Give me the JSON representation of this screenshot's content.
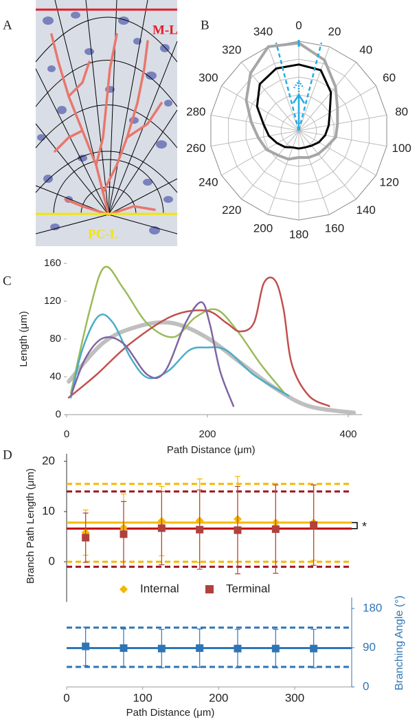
{
  "panel_a": {
    "label": "A",
    "top_layer": "M-L",
    "bottom_layer": "PC-L"
  },
  "chart_data": [
    {
      "type": "polar",
      "label": "B",
      "theta_ticks": [
        0,
        20,
        40,
        60,
        80,
        100,
        120,
        140,
        160,
        180,
        200,
        220,
        240,
        260,
        280,
        300,
        320,
        340
      ],
      "rlim": [
        0,
        5
      ],
      "rgrid": [
        1,
        2,
        3,
        4,
        5
      ],
      "series": [
        {
          "color": "#a6a6a6",
          "values": [
            4.9,
            4.2,
            3.2,
            2.5,
            2.2,
            2.1,
            1.8,
            1.7,
            1.6,
            1.5,
            1.7,
            1.8,
            2.1,
            2.3,
            2.7,
            3.4,
            4.2,
            5.0
          ]
        },
        {
          "color": "#000000",
          "values": [
            3.7,
            3.6,
            2.8,
            2.0,
            1.7,
            1.5,
            1.3,
            1.1,
            1.0,
            1.0,
            1.0,
            1.2,
            1.4,
            1.7,
            2.0,
            2.7,
            3.4,
            3.7
          ]
        }
      ]
    },
    {
      "type": "line",
      "label": "C",
      "xlabel": "Path Distance (μm)",
      "ylabel": "Length (μm)",
      "xlim": [
        0,
        420
      ],
      "ylim": [
        0,
        160
      ],
      "xticks": [
        0,
        200,
        400
      ],
      "yticks": [
        0,
        40,
        80,
        120,
        160
      ],
      "series": [
        {
          "color": "#9bbb59",
          "width": 2.5,
          "x": [
            6,
            33,
            54,
            81,
            115,
            152,
            183,
            213,
            242,
            276,
            308
          ],
          "values": [
            23,
            111,
            156,
            133,
            96,
            82,
            103,
            111,
            89,
            53,
            24
          ]
        },
        {
          "color": "#c0504d",
          "width": 2.5,
          "x": [
            3,
            42,
            90,
            149,
            198,
            227,
            246,
            266,
            280,
            296,
            308,
            320,
            344,
            373
          ],
          "values": [
            18,
            42,
            75,
            104,
            110,
            97,
            88,
            97,
            139,
            142,
            112,
            53,
            20,
            9
          ]
        },
        {
          "color": "#8064a2",
          "width": 2.5,
          "x": [
            6,
            27,
            52,
            81,
            115,
            140,
            169,
            191,
            203,
            218,
            237
          ],
          "values": [
            20,
            60,
            81,
            75,
            42,
            46,
            97,
            119,
            97,
            46,
            9
          ]
        },
        {
          "color": "#4bacc6",
          "width": 2.5,
          "x": [
            6,
            22,
            45,
            66,
            91,
            115,
            144,
            174,
            198,
            227,
            266,
            315
          ],
          "values": [
            18,
            68,
            104,
            97,
            60,
            39,
            46,
            68,
            71,
            68,
            42,
            20
          ]
        },
        {
          "color": "#bfbfbf",
          "width": 6,
          "x": [
            3,
            52,
            100,
            149,
            198,
            247,
            296,
            344,
            408
          ],
          "values": [
            35,
            76,
            93,
            97,
            82,
            55,
            28,
            9,
            2
          ]
        }
      ]
    },
    {
      "type": "errorbar",
      "label": "D",
      "ylabel": "Branch Path Length (μm)",
      "annotation": "*",
      "xlim": [
        0,
        375
      ],
      "ylim": [
        -8,
        21.5
      ],
      "yticks": [
        0,
        10,
        20
      ],
      "x": [
        25,
        75,
        125,
        175,
        225,
        275,
        325
      ],
      "reference_lines": [
        {
          "value": 15.5,
          "color": "#f5b800",
          "style": "dashed"
        },
        {
          "value": 0,
          "color": "#f5b800",
          "style": "dashed"
        },
        {
          "value": 14,
          "color": "#a0141e",
          "style": "dashed"
        },
        {
          "value": -1,
          "color": "#a0141e",
          "style": "dashed"
        },
        {
          "value": 7.8,
          "color": "#f5b800",
          "style": "solid"
        },
        {
          "value": 6.6,
          "color": "#c00000",
          "style": "solid"
        }
      ],
      "series": [
        {
          "name": "Internal",
          "color": "#f5b800",
          "marker": "diamond",
          "values": [
            5.8,
            6.8,
            8.1,
            8.2,
            8.5,
            7.8,
            7.8
          ],
          "errors": [
            4.5,
            6.7,
            6.9,
            8.3,
            8.5,
            7.7,
            7.5
          ]
        },
        {
          "name": "Terminal",
          "color": "#b0413e",
          "marker": "square",
          "values": [
            4.8,
            5.5,
            6.7,
            6.4,
            6.3,
            6.5,
            7.3
          ],
          "errors": [
            4.9,
            6.5,
            7.3,
            7.9,
            8.7,
            8.8,
            8.0
          ]
        }
      ]
    },
    {
      "type": "errorbar",
      "xlabel": "Path Distance (μm)",
      "y2label": "Branching Angle (°)",
      "xlim": [
        0,
        375
      ],
      "xticks": [
        0,
        100,
        200,
        300
      ],
      "y2lim": [
        0,
        205
      ],
      "y2ticks": [
        0,
        90,
        180
      ],
      "axis_color": "#2e75b6",
      "x": [
        25,
        75,
        125,
        175,
        225,
        275,
        325
      ],
      "reference_lines": [
        {
          "value": 136,
          "color": "#2e75b6",
          "style": "dashed"
        },
        {
          "value": 46,
          "color": "#2e75b6",
          "style": "dashed"
        },
        {
          "value": 89,
          "color": "#2e75b6",
          "style": "solid"
        }
      ],
      "series": [
        {
          "color": "#2e75b6",
          "marker": "square",
          "axis": "y2",
          "values": [
            93,
            89,
            88,
            89,
            88,
            88,
            88
          ],
          "errors": [
            44,
            44,
            44,
            44,
            44,
            44,
            44
          ]
        }
      ]
    }
  ]
}
